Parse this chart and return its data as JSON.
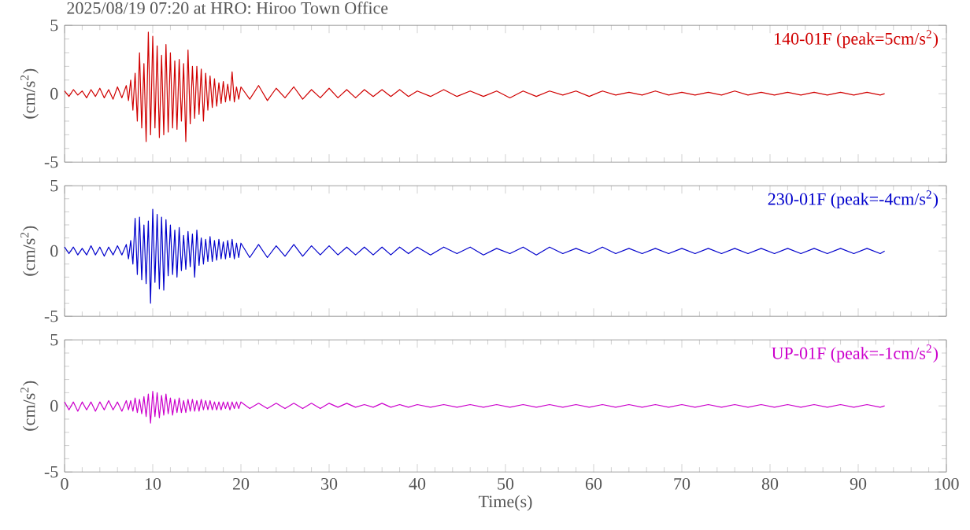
{
  "chart_data": [
    {
      "type": "line",
      "title": "2025/08/19 07:20 at HRO: Hiroo Town Office",
      "ylabel": "(cm/s$^{2}$)",
      "tick_labels": "y",
      "xlim": [
        0,
        100
      ],
      "xticks": [
        0,
        10,
        20,
        30,
        40,
        50,
        60,
        70,
        80,
        90,
        100
      ],
      "ylim": [
        -5,
        5
      ],
      "yticks": [
        -5,
        0,
        5
      ],
      "x": [
        0,
        0.5,
        1,
        1.5,
        2,
        2.5,
        3,
        3.5,
        4,
        4.5,
        5,
        5.5,
        6,
        6.5,
        7,
        7.25,
        7.5,
        7.75,
        8,
        8.25,
        8.5,
        8.75,
        9,
        9.25,
        9.5,
        9.75,
        10,
        10.25,
        10.5,
        10.75,
        11,
        11.25,
        11.5,
        11.75,
        12,
        12.25,
        12.5,
        12.75,
        13,
        13.25,
        13.5,
        13.75,
        14,
        14.25,
        14.5,
        14.75,
        15,
        15.25,
        15.5,
        15.75,
        16,
        16.25,
        16.5,
        16.75,
        17,
        17.25,
        17.5,
        17.75,
        18,
        18.25,
        18.5,
        18.75,
        19,
        19.25,
        19.5,
        19.75,
        20,
        21,
        22,
        23,
        24,
        25,
        26,
        27,
        28,
        29,
        30,
        31,
        32,
        33,
        34,
        35,
        36,
        37,
        38,
        39,
        40,
        41.5,
        43,
        44.5,
        46,
        47.5,
        49,
        50.5,
        52,
        53.5,
        55,
        56.5,
        58,
        59.5,
        61,
        62.5,
        64,
        65.5,
        67,
        68.5,
        70,
        71.5,
        73,
        74.5,
        76,
        77.5,
        79,
        80.5,
        82,
        83.5,
        85,
        86.5,
        88,
        89.5,
        91,
        92.5,
        93
      ],
      "series": [
        {
          "name": "140-01F (peak=5cm/s$^{2}$)",
          "color": "#d00000",
          "values": [
            0.2,
            -0.2,
            0.3,
            -0.1,
            0.2,
            -0.3,
            0.3,
            -0.2,
            0.4,
            -0.3,
            0.3,
            -0.4,
            0.5,
            -0.3,
            0.6,
            -0.5,
            1.0,
            -1.2,
            1.5,
            -2.0,
            3.0,
            -2.5,
            2.2,
            -3.5,
            4.5,
            -3.0,
            4.2,
            -2.5,
            3.5,
            -3.2,
            2.8,
            -3.0,
            3.6,
            -2.8,
            3.0,
            -2.5,
            2.4,
            -2.6,
            2.5,
            -2.0,
            2.2,
            -3.5,
            3.2,
            -2.2,
            2.0,
            -1.8,
            2.0,
            -1.5,
            1.8,
            -2.0,
            1.5,
            -1.2,
            1.3,
            -1.0,
            1.1,
            -0.9,
            0.8,
            -0.7,
            0.9,
            -0.6,
            0.7,
            -0.5,
            1.6,
            -0.6,
            0.5,
            -0.4,
            0.5,
            -0.4,
            0.6,
            -0.5,
            0.4,
            -0.3,
            0.5,
            -0.4,
            0.3,
            -0.3,
            0.4,
            -0.3,
            0.3,
            -0.3,
            0.3,
            -0.2,
            0.3,
            -0.2,
            0.3,
            -0.2,
            0.2,
            -0.2,
            0.3,
            -0.2,
            0.2,
            -0.2,
            0.2,
            -0.3,
            0.2,
            -0.2,
            0.2,
            -0.1,
            0.2,
            -0.2,
            0.2,
            -0.1,
            0.1,
            -0.1,
            0.2,
            -0.1,
            0.1,
            -0.1,
            0.1,
            -0.1,
            0.2,
            -0.1,
            0.1,
            -0.1,
            0.1,
            -0.1,
            0.1,
            -0.1,
            0.1,
            -0.1,
            0.1,
            -0.1,
            0
          ]
        }
      ]
    },
    {
      "type": "line",
      "ylabel": "(cm/s$^{2}$)",
      "tick_labels": "y",
      "xlim": [
        0,
        100
      ],
      "xticks": [
        0,
        10,
        20,
        30,
        40,
        50,
        60,
        70,
        80,
        90,
        100
      ],
      "ylim": [
        -5,
        5
      ],
      "yticks": [
        -5,
        0,
        5
      ],
      "x": [
        0,
        0.5,
        1,
        1.5,
        2,
        2.5,
        3,
        3.5,
        4,
        4.5,
        5,
        5.5,
        6,
        6.5,
        7,
        7.25,
        7.5,
        7.75,
        8,
        8.25,
        8.5,
        8.75,
        9,
        9.25,
        9.5,
        9.75,
        10,
        10.25,
        10.5,
        10.75,
        11,
        11.25,
        11.5,
        11.75,
        12,
        12.25,
        12.5,
        12.75,
        13,
        13.25,
        13.5,
        13.75,
        14,
        14.25,
        14.5,
        14.75,
        15,
        15.25,
        15.5,
        15.75,
        16,
        16.25,
        16.5,
        16.75,
        17,
        17.25,
        17.5,
        17.75,
        18,
        18.25,
        18.5,
        18.75,
        19,
        19.25,
        19.5,
        19.75,
        20,
        21,
        22,
        23,
        24,
        25,
        26,
        27,
        28,
        29,
        30,
        31,
        32,
        33,
        34,
        35,
        36,
        37,
        38,
        39,
        40,
        41.5,
        43,
        44.5,
        46,
        47.5,
        49,
        50.5,
        52,
        53.5,
        55,
        56.5,
        58,
        59.5,
        61,
        62.5,
        64,
        65.5,
        67,
        68.5,
        70,
        71.5,
        73,
        74.5,
        76,
        77.5,
        79,
        80.5,
        82,
        83.5,
        85,
        86.5,
        88,
        89.5,
        91,
        92.5,
        93
      ],
      "series": [
        {
          "name": "230-01F (peak=-4cm/s$^{2}$)",
          "color": "#0000cc",
          "values": [
            0.3,
            -0.2,
            0.3,
            -0.3,
            0.2,
            -0.3,
            0.4,
            -0.3,
            0.3,
            -0.4,
            0.3,
            -0.3,
            0.4,
            -0.3,
            0.5,
            -0.6,
            0.8,
            -1.0,
            2.5,
            -1.8,
            2.6,
            -2.2,
            2.0,
            -2.5,
            2.3,
            -4.0,
            3.2,
            -2.4,
            2.8,
            -2.9,
            2.6,
            -3.0,
            2.4,
            -1.9,
            2.0,
            -1.8,
            1.6,
            -2.0,
            1.8,
            -1.5,
            1.2,
            -1.4,
            1.5,
            -1.2,
            1.3,
            -2.0,
            1.6,
            -1.1,
            1.0,
            -1.0,
            0.9,
            -0.8,
            1.1,
            -0.8,
            0.8,
            -0.7,
            0.9,
            -0.6,
            0.7,
            -0.6,
            0.8,
            -0.5,
            0.9,
            -0.6,
            0.6,
            -0.5,
            0.6,
            -0.5,
            0.5,
            -0.5,
            0.4,
            -0.4,
            0.5,
            -0.4,
            0.4,
            -0.3,
            0.4,
            -0.3,
            0.3,
            -0.3,
            0.3,
            -0.3,
            0.3,
            -0.3,
            0.3,
            -0.2,
            0.3,
            -0.3,
            0.3,
            -0.2,
            0.3,
            -0.3,
            0.2,
            -0.2,
            0.3,
            -0.3,
            0.3,
            -0.2,
            0.2,
            -0.2,
            0.3,
            -0.2,
            0.2,
            -0.2,
            0.2,
            -0.2,
            0.2,
            -0.2,
            0.2,
            -0.2,
            0.2,
            -0.2,
            0.2,
            -0.2,
            0.2,
            -0.2,
            0.2,
            -0.2,
            0.2,
            -0.2,
            0.2,
            -0.2,
            0
          ]
        }
      ]
    },
    {
      "type": "line",
      "xlabel": "Time(s)",
      "ylabel": "(cm/s$^{2}$)",
      "xlim": [
        0,
        100
      ],
      "xticks": [
        0,
        10,
        20,
        30,
        40,
        50,
        60,
        70,
        80,
        90,
        100
      ],
      "ylim": [
        -5,
        5
      ],
      "yticks": [
        -5,
        0,
        5
      ],
      "x": [
        0,
        0.5,
        1,
        1.5,
        2,
        2.5,
        3,
        3.5,
        4,
        4.5,
        5,
        5.5,
        6,
        6.5,
        7,
        7.25,
        7.5,
        7.75,
        8,
        8.25,
        8.5,
        8.75,
        9,
        9.25,
        9.5,
        9.75,
        10,
        10.25,
        10.5,
        10.75,
        11,
        11.25,
        11.5,
        11.75,
        12,
        12.25,
        12.5,
        12.75,
        13,
        13.25,
        13.5,
        13.75,
        14,
        14.25,
        14.5,
        14.75,
        15,
        15.25,
        15.5,
        15.75,
        16,
        16.25,
        16.5,
        16.75,
        17,
        17.25,
        17.5,
        17.75,
        18,
        18.25,
        18.5,
        18.75,
        19,
        19.25,
        19.5,
        19.75,
        20,
        21,
        22,
        23,
        24,
        25,
        26,
        27,
        28,
        29,
        30,
        31,
        32,
        33,
        34,
        35,
        36,
        37,
        38,
        39,
        40,
        41.5,
        43,
        44.5,
        46,
        47.5,
        49,
        50.5,
        52,
        53.5,
        55,
        56.5,
        58,
        59.5,
        61,
        62.5,
        64,
        65.5,
        67,
        68.5,
        70,
        71.5,
        73,
        74.5,
        76,
        77.5,
        79,
        80.5,
        82,
        83.5,
        85,
        86.5,
        88,
        89.5,
        91,
        92.5,
        93
      ],
      "series": [
        {
          "name": "UP-01F (peak=-1cm/s$^{2}$)",
          "color": "#cc00cc",
          "values": [
            0.3,
            -0.3,
            0.3,
            -0.4,
            0.3,
            -0.3,
            0.3,
            -0.4,
            0.3,
            -0.3,
            0.4,
            -0.3,
            0.3,
            -0.4,
            0.4,
            -0.3,
            0.4,
            -0.4,
            0.6,
            -0.5,
            0.5,
            -0.6,
            0.7,
            -0.8,
            0.9,
            -1.3,
            1.1,
            -0.8,
            1.0,
            -0.9,
            0.8,
            -0.7,
            0.9,
            -0.6,
            0.6,
            -0.7,
            0.5,
            -0.5,
            0.6,
            -0.5,
            0.4,
            -0.5,
            0.5,
            -0.4,
            0.5,
            -0.4,
            0.4,
            -0.4,
            0.5,
            -0.3,
            0.4,
            -0.3,
            0.4,
            -0.3,
            0.3,
            -0.3,
            0.3,
            -0.3,
            0.3,
            -0.2,
            0.3,
            -0.3,
            0.3,
            -0.2,
            0.3,
            -0.2,
            0.3,
            -0.2,
            0.2,
            -0.2,
            0.2,
            -0.2,
            0.2,
            -0.2,
            0.2,
            -0.2,
            0.2,
            -0.1,
            0.2,
            -0.1,
            0.1,
            -0.1,
            0.2,
            -0.1,
            0.1,
            -0.1,
            0.1,
            -0.1,
            0.1,
            -0.1,
            0.1,
            -0.1,
            0.1,
            -0.1,
            0.1,
            -0.1,
            0.1,
            -0.1,
            0.1,
            -0.1,
            0.1,
            -0.1,
            0.1,
            -0.1,
            0.1,
            -0.1,
            0.1,
            -0.1,
            0.1,
            -0.1,
            0.1,
            -0.1,
            0.1,
            -0.1,
            0.1,
            -0.1,
            0.1,
            -0.1,
            0.1,
            -0.1,
            0.1,
            -0.1,
            0
          ]
        }
      ]
    }
  ]
}
